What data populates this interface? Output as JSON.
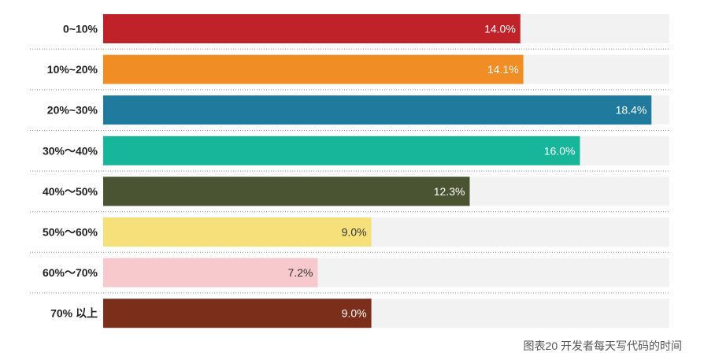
{
  "chart_data": {
    "type": "bar",
    "orientation": "horizontal",
    "categories": [
      "0~10%",
      "10%~20%",
      "20%~30%",
      "30%～40%",
      "40%～50%",
      "50%～60%",
      "60%～70%",
      "70% 以上"
    ],
    "values": [
      14.0,
      14.1,
      18.4,
      16.0,
      12.3,
      9.0,
      7.2,
      9.0
    ],
    "value_labels": [
      "14.0%",
      "14.1%",
      "18.4%",
      "16.0%",
      "12.3%",
      "9.0%",
      "7.2%",
      "9.0%"
    ],
    "xlim": [
      0,
      19
    ],
    "colors": [
      "#c0222a",
      "#f08d24",
      "#1f7a9e",
      "#17b59a",
      "#4a5332",
      "#f5e07a",
      "#f7c9cc",
      "#7b2e1a"
    ],
    "label_colors": [
      "#ffffff",
      "#ffffff",
      "#ffffff",
      "#ffffff",
      "#ffffff",
      "#333333",
      "#333333",
      "#ffffff"
    ],
    "track_color": "#f2f2f2",
    "separator": "dotted",
    "caption": "图表20 开发者每天写代码的时间"
  }
}
